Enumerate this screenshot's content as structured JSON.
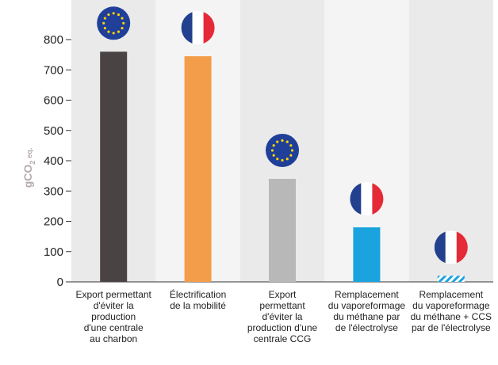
{
  "chart_data": {
    "type": "bar",
    "ylabel": "gCO",
    "ylabel_sub": "2",
    "ylabel_suffix": "eq.",
    "ylim": [
      0,
      800
    ],
    "yticks": [
      "0",
      "100",
      "200",
      "300",
      "400",
      "500",
      "600",
      "700",
      "800"
    ],
    "yticks_values": [
      0,
      100,
      200,
      300,
      400,
      500,
      600,
      700,
      800
    ],
    "grid": false,
    "categories": [
      [
        "Export permettant",
        "d'éviter la",
        "production",
        "d'une centrale",
        "au charbon"
      ],
      [
        "Électrification",
        "de la mobilité"
      ],
      [
        "Export",
        "permettant",
        "d'éviter la",
        "production d'une",
        "centrale CCG"
      ],
      [
        "Remplacement",
        "du vaporeformage",
        "du méthane par",
        "de l'électrolyse"
      ],
      [
        "Remplacement",
        "du vaporeformage",
        "du méthane + CCS",
        "par de l'électrolyse"
      ]
    ],
    "values": [
      760,
      745,
      340,
      180,
      20
    ],
    "colors": [
      "#4a4344",
      "#f39c4a",
      "#b8b8b8",
      "#1aa3de",
      "#1aa3de"
    ],
    "patterns": [
      "solid",
      "solid",
      "solid",
      "solid",
      "hatched"
    ],
    "flags": [
      "eu-flag-icon",
      "france-flag-icon",
      "eu-flag-icon",
      "france-flag-icon",
      "france-flag-icon"
    ],
    "band_colors": [
      "#eaeaea",
      "#f4f4f4"
    ]
  }
}
